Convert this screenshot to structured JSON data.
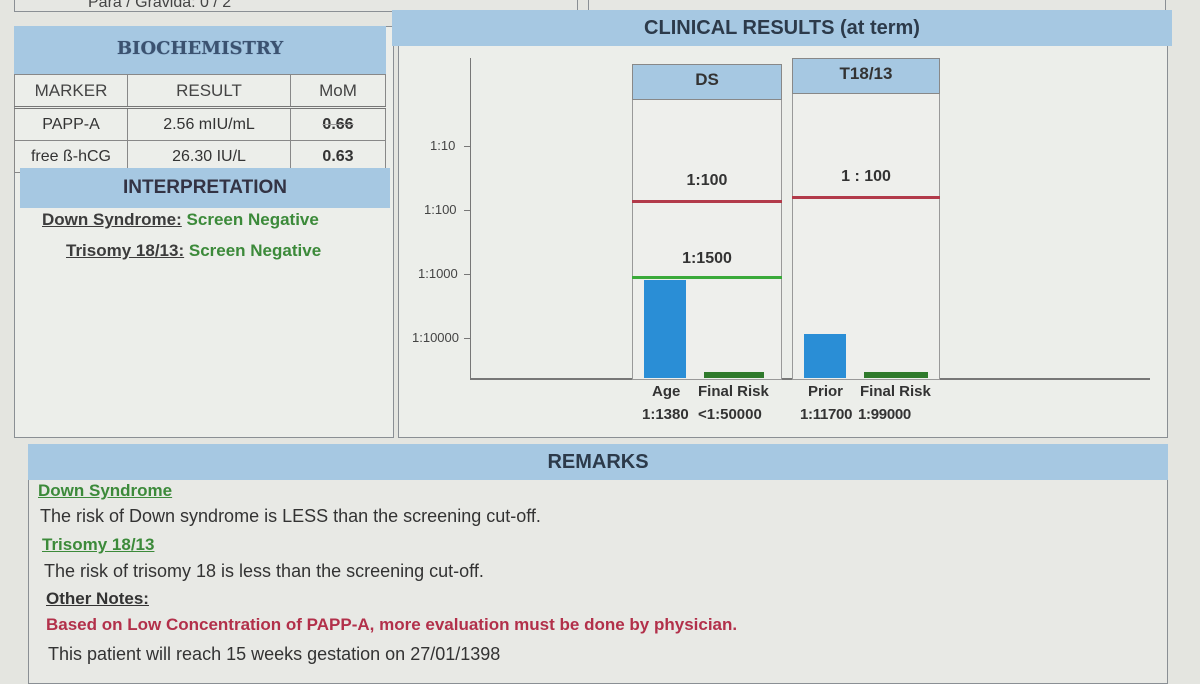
{
  "patient": {
    "para_gravida": "Para / Gravida: 0 / 2"
  },
  "biochemistry": {
    "title": "BIOCHEMISTRY",
    "headers": [
      "MARKER",
      "RESULT",
      "MoM"
    ],
    "rows": [
      [
        "PAPP-A",
        "2.56 mIU/mL",
        "0.66"
      ],
      [
        "free ß-hCG",
        "26.30 IU/L",
        "0.63"
      ]
    ]
  },
  "interpretation": {
    "title": "INTERPRETATION",
    "lines": [
      {
        "label": "Down Syndrome:",
        "value": "Screen Negative"
      },
      {
        "label": "Trisomy 18/13:",
        "value": "Screen Negative"
      }
    ]
  },
  "clinical": {
    "title": "CLINICAL RESULTS (at term)",
    "y_ticks": [
      "1:10",
      "1:100",
      "1:1000",
      "1:10000"
    ],
    "columns": [
      {
        "name": "DS",
        "cutoff_label": "1:100",
        "age_line_label": "1:1500",
        "bar_labels": [
          "Age",
          "Final Risk"
        ],
        "bar_values": [
          "1:1380",
          "<1:50000"
        ]
      },
      {
        "name": "T18/13",
        "cutoff_label": "1 : 100",
        "bar_labels": [
          "Prior",
          "Final Risk"
        ],
        "bar_values": [
          "1:11700",
          "1:99000"
        ]
      }
    ]
  },
  "remarks": {
    "title": "REMARKS",
    "ds_heading": "Down Syndrome",
    "ds_text": "The risk of Down syndrome is LESS than the screening cut-off.",
    "t18_heading": "Trisomy 18/13",
    "t18_text": "The risk of trisomy 18 is less than the screening cut-off.",
    "other_heading": "Other Notes:",
    "other_text": "Based on Low Concentration of  PAPP-A, more evaluation must be done by physician.",
    "gestation_text": "This patient will reach 15 weeks gestation on 27/01/1398"
  },
  "colors": {
    "header_blue": "#a6c8e2",
    "bar_blue": "#2a8ed6",
    "bar_green": "#2f7a2c",
    "cutoff_red": "#b23a4a",
    "age_green": "#3aaa3a",
    "negative_green": "#3c8a3a",
    "note_red": "#b2304a"
  }
}
